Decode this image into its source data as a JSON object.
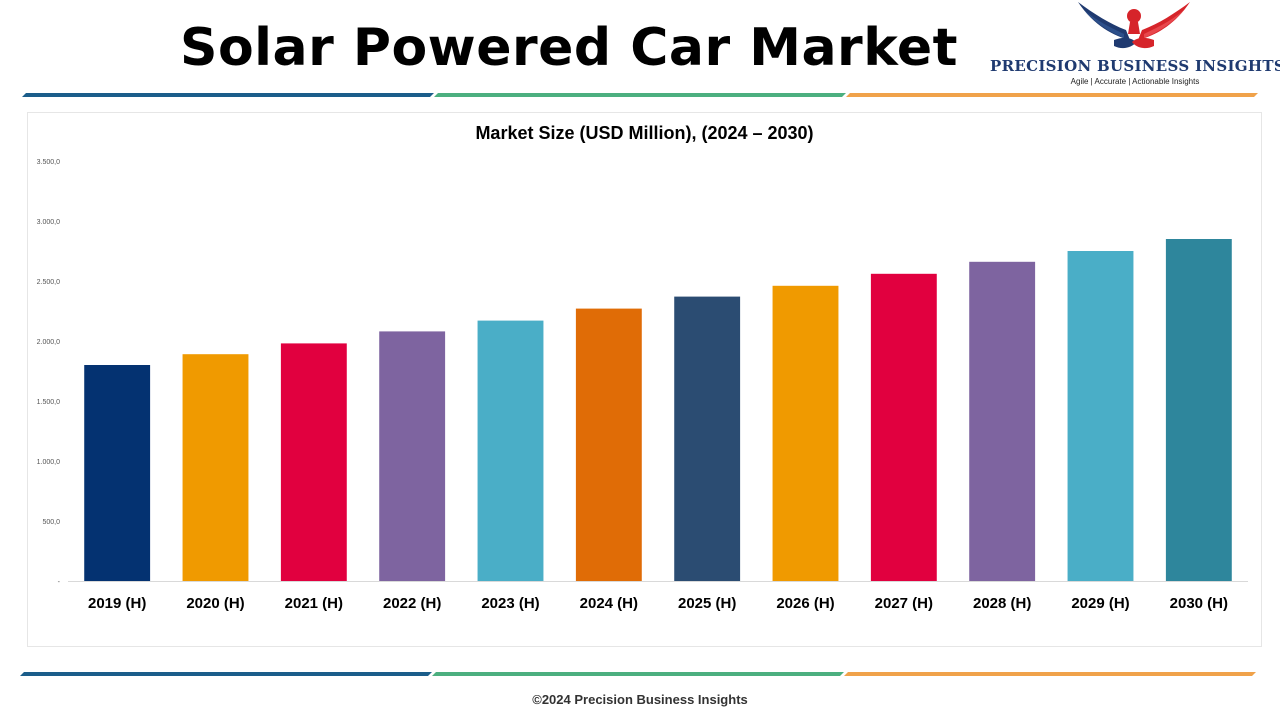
{
  "page": {
    "title": "Solar Powered Car Market"
  },
  "brand": {
    "name": "PRECISION BUSINESS INSIGHTS",
    "tagline": "Agile | Accurate | Actionable Insights",
    "logo_icon": "eagle-handshake-icon"
  },
  "footer": {
    "copyright": "©2024 Precision Business Insights"
  },
  "colors": {
    "stripe_blue": "#1b5d8a",
    "stripe_green": "#4caf7f",
    "stripe_orange": "#f0a24a"
  },
  "chart_data": {
    "type": "bar",
    "title": "Market Size (USD Million), (2024 – 2030)",
    "xlabel": "",
    "ylabel": "",
    "categories": [
      "2019 (H)",
      "2020 (H)",
      "2021 (H)",
      "2022 (H)",
      "2023 (H)",
      "2024 (H)",
      "2025 (H)",
      "2026 (H)",
      "2027 (H)",
      "2028 (H)",
      "2029 (H)",
      "2030 (H)"
    ],
    "values": [
      1800,
      1890,
      1980,
      2080,
      2170,
      2270,
      2370,
      2460,
      2560,
      2660,
      2750,
      2850
    ],
    "bar_colors": [
      "#043271",
      "#f09a00",
      "#e1003f",
      "#7e64a0",
      "#4aaec7",
      "#e06c06",
      "#2b4c72",
      "#f09a00",
      "#e1003f",
      "#7e64a0",
      "#4aaec7",
      "#2e869c"
    ],
    "ylim": [
      0,
      3500
    ],
    "yticks": [
      0,
      500,
      1000,
      1500,
      2000,
      2500,
      3000,
      3500
    ],
    "ytick_labels": [
      "-",
      "500,0",
      "1.000,0",
      "1.500,0",
      "2.000,0",
      "2.500,0",
      "3.000,0",
      "3.500,0"
    ],
    "grid": false,
    "legend": "none"
  }
}
